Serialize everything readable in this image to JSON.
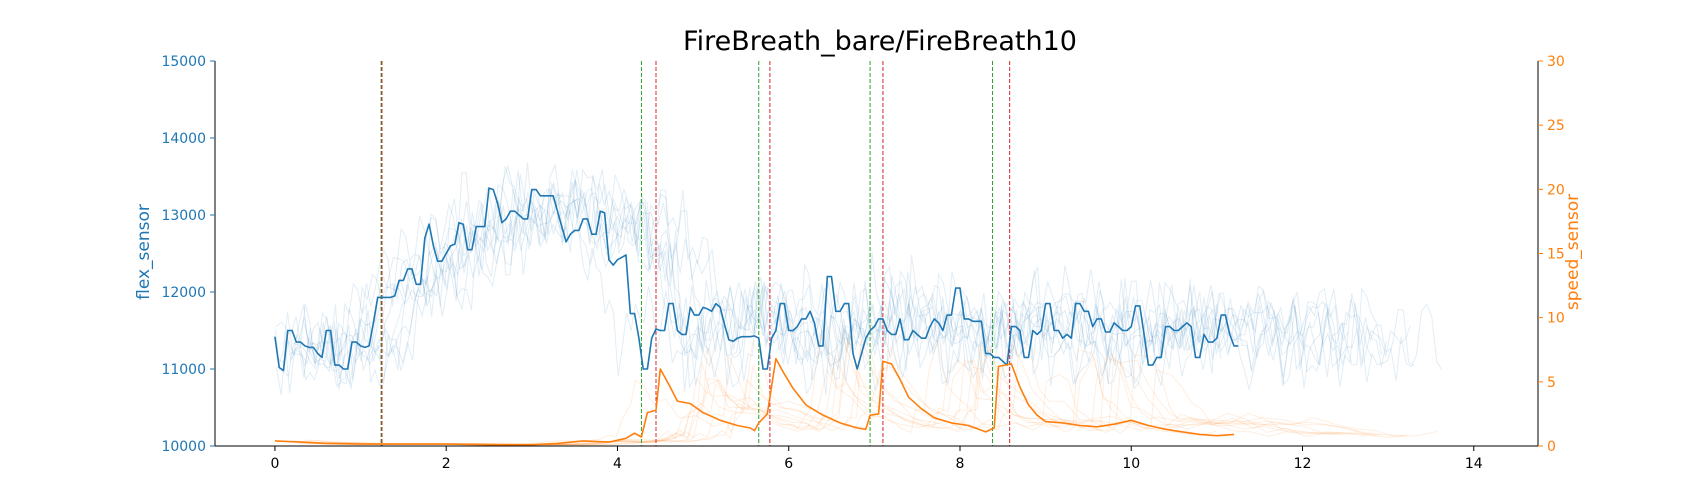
{
  "chart_data": {
    "type": "line",
    "title": "FireBreath_bare/FireBreath10",
    "xlabel": "",
    "ylabel": "flex_sensor",
    "y2label": "speed_sensor",
    "xlim": [
      -0.7,
      14.75
    ],
    "ylim": [
      10000,
      15000
    ],
    "y2lim": [
      0,
      30
    ],
    "xticks": [
      0,
      2,
      4,
      6,
      8,
      10,
      12,
      14
    ],
    "yticks": [
      10000,
      11000,
      12000,
      13000,
      14000,
      15000
    ],
    "y2ticks": [
      0,
      5,
      10,
      15,
      20,
      25,
      30
    ],
    "grid": false,
    "colors": {
      "flex": "#1f77b4",
      "speed": "#ff7f0e",
      "onset_marker": "#2ca02c",
      "offset_marker": "#d62728"
    },
    "series": [
      {
        "name": "flex_sensor",
        "axis": "left",
        "x": [
          0.0,
          0.05,
          0.1,
          0.15,
          0.2,
          0.25,
          0.3,
          0.35,
          0.4,
          0.45,
          0.5,
          0.55,
          0.6,
          0.65,
          0.7,
          0.75,
          0.8,
          0.85,
          0.9,
          0.95,
          1.0,
          1.05,
          1.1,
          1.15,
          1.2,
          1.25,
          1.3,
          1.35,
          1.4,
          1.45,
          1.5,
          1.55,
          1.6,
          1.65,
          1.7,
          1.75,
          1.8,
          1.85,
          1.9,
          1.95,
          2.0,
          2.05,
          2.1,
          2.15,
          2.2,
          2.25,
          2.3,
          2.35,
          2.4,
          2.45,
          2.5,
          2.55,
          2.6,
          2.65,
          2.7,
          2.75,
          2.8,
          2.85,
          2.9,
          2.95,
          3.0,
          3.05,
          3.1,
          3.15,
          3.2,
          3.25,
          3.3,
          3.35,
          3.4,
          3.45,
          3.5,
          3.55,
          3.6,
          3.65,
          3.7,
          3.75,
          3.8,
          3.85,
          3.9,
          3.95,
          4.0,
          4.05,
          4.1,
          4.15,
          4.2,
          4.25,
          4.3,
          4.35,
          4.4,
          4.45,
          4.5,
          4.55,
          4.6,
          4.65,
          4.7,
          4.75,
          4.8,
          4.85,
          4.9,
          4.95,
          5.0,
          5.05,
          5.1,
          5.15,
          5.2,
          5.25,
          5.3,
          5.35,
          5.4,
          5.45,
          5.5,
          5.55,
          5.6,
          5.65,
          5.7,
          5.75,
          5.8,
          5.85,
          5.9,
          5.95,
          6.0,
          6.05,
          6.1,
          6.15,
          6.2,
          6.25,
          6.3,
          6.35,
          6.4,
          6.45,
          6.5,
          6.55,
          6.6,
          6.65,
          6.7,
          6.75,
          6.8,
          6.85,
          6.9,
          6.95,
          7.0,
          7.05,
          7.1,
          7.15,
          7.2,
          7.25,
          7.3,
          7.35,
          7.4,
          7.45,
          7.5,
          7.55,
          7.6,
          7.65,
          7.7,
          7.75,
          7.8,
          7.85,
          7.9,
          7.95,
          8.0,
          8.05,
          8.1,
          8.15,
          8.2,
          8.25,
          8.3,
          8.35,
          8.4,
          8.45,
          8.5,
          8.55,
          8.6,
          8.65,
          8.7,
          8.75,
          8.8,
          8.85,
          8.9,
          8.95,
          9.0,
          9.05,
          9.1,
          9.15,
          9.2,
          9.25,
          9.3,
          9.35,
          9.4,
          9.45,
          9.5,
          9.55,
          9.6,
          9.65,
          9.7,
          9.75,
          9.8,
          9.85,
          9.9,
          9.95,
          10.0,
          10.05,
          10.1,
          10.15,
          10.2,
          10.25,
          10.3,
          10.35,
          10.4,
          10.45,
          10.5,
          10.55,
          10.6,
          10.65,
          10.7,
          10.75,
          10.8,
          10.85,
          10.9,
          10.95,
          11.0,
          11.05,
          11.1,
          11.15,
          11.2,
          11.25
        ],
        "values": [
          11420,
          11020,
          10980,
          11500,
          11500,
          11350,
          11350,
          11300,
          11280,
          11280,
          11200,
          11150,
          11500,
          11500,
          11050,
          11050,
          11000,
          11000,
          11350,
          11350,
          11300,
          11280,
          11300,
          11600,
          11930,
          11930,
          11930,
          11930,
          11950,
          12150,
          12150,
          12300,
          12300,
          12100,
          12100,
          12700,
          12880,
          12600,
          12400,
          12400,
          12500,
          12600,
          12620,
          12900,
          12880,
          12550,
          12550,
          12850,
          12850,
          12850,
          13350,
          13330,
          13150,
          12900,
          12950,
          13050,
          13050,
          13000,
          12950,
          12950,
          13330,
          13330,
          13250,
          13250,
          13250,
          13250,
          13050,
          12850,
          12650,
          12750,
          12800,
          12800,
          12950,
          12950,
          12750,
          12750,
          13050,
          13030,
          12420,
          12350,
          12420,
          12450,
          12480,
          11720,
          11720,
          11400,
          11000,
          11000,
          11400,
          11520,
          11500,
          11500,
          11850,
          11850,
          11500,
          11450,
          11450,
          11800,
          11700,
          11700,
          11800,
          11780,
          11750,
          11850,
          11800,
          11580,
          11380,
          11360,
          11400,
          11420,
          11420,
          11420,
          11430,
          11400,
          11000,
          11000,
          11400,
          11500,
          11850,
          11850,
          11500,
          11500,
          11550,
          11650,
          11650,
          11750,
          11600,
          11300,
          11300,
          12200,
          12200,
          11750,
          11750,
          11850,
          11850,
          11200,
          11000,
          11200,
          11400,
          11500,
          11550,
          11650,
          11650,
          11500,
          11450,
          11450,
          11650,
          11380,
          11380,
          11500,
          11450,
          11400,
          11400,
          11550,
          11650,
          11600,
          11500,
          11700,
          11700,
          12050,
          12050,
          11650,
          11650,
          11620,
          11620,
          11620,
          11200,
          11200,
          11150,
          11150,
          11100,
          11050,
          11550,
          11550,
          11500,
          11150,
          11150,
          11500,
          11450,
          11500,
          11850,
          11850,
          11500,
          11500,
          11400,
          11450,
          11400,
          11850,
          11850,
          11750,
          11750,
          11550,
          11650,
          11650,
          11480,
          11480,
          11600,
          11550,
          11500,
          11500,
          11550,
          11820,
          11820,
          11450,
          11050,
          11050,
          11150,
          11150,
          11550,
          11550,
          11500,
          11500,
          11550,
          11600,
          11550,
          11150,
          11150,
          11450,
          11350,
          11350,
          11400,
          11700,
          11700,
          11450,
          11300,
          11300
        ]
      },
      {
        "name": "speed_sensor",
        "axis": "right",
        "x": [
          0.0,
          0.3,
          0.6,
          1.0,
          1.25,
          1.6,
          2.0,
          2.5,
          3.0,
          3.3,
          3.6,
          3.9,
          4.1,
          4.2,
          4.28,
          4.35,
          4.45,
          4.5,
          4.6,
          4.7,
          4.85,
          5.0,
          5.2,
          5.4,
          5.55,
          5.6,
          5.65,
          5.75,
          5.85,
          5.95,
          6.05,
          6.2,
          6.4,
          6.6,
          6.8,
          6.9,
          6.95,
          7.05,
          7.1,
          7.2,
          7.3,
          7.4,
          7.55,
          7.7,
          7.9,
          8.1,
          8.3,
          8.4,
          8.45,
          8.6,
          8.7,
          8.8,
          8.9,
          9.0,
          9.2,
          9.4,
          9.6,
          9.8,
          10.0,
          10.2,
          10.4,
          10.6,
          10.8,
          11.0,
          11.2
        ],
        "values": [
          0.4,
          0.3,
          0.2,
          0.15,
          0.15,
          0.15,
          0.15,
          0.1,
          0.1,
          0.2,
          0.4,
          0.3,
          0.6,
          1.0,
          0.7,
          2.6,
          2.8,
          6.0,
          4.8,
          3.5,
          3.3,
          2.6,
          2.0,
          1.6,
          1.4,
          1.2,
          1.8,
          2.5,
          6.8,
          5.6,
          4.5,
          3.2,
          2.4,
          1.8,
          1.4,
          1.3,
          2.4,
          2.5,
          6.6,
          6.4,
          5.2,
          3.8,
          2.9,
          2.2,
          1.8,
          1.6,
          1.1,
          1.4,
          6.2,
          6.4,
          4.6,
          3.2,
          2.4,
          1.9,
          1.8,
          1.6,
          1.5,
          1.7,
          2.0,
          1.6,
          1.3,
          1.1,
          0.9,
          0.8,
          0.9
        ]
      }
    ],
    "markers": {
      "onset": [
        1.24,
        4.28,
        5.65,
        6.95,
        8.38
      ],
      "offset": [
        1.25,
        4.45,
        5.78,
        7.1,
        8.58
      ]
    }
  }
}
